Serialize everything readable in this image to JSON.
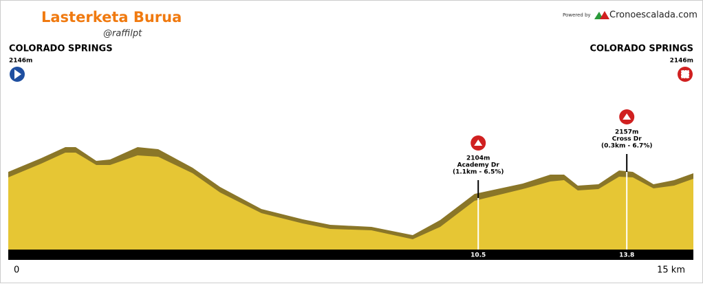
{
  "header": {
    "title": "Lasterketa Burua",
    "author": "@raffilpt",
    "powered_by": "Powered by",
    "brand": "Cronoescalada.com"
  },
  "start": {
    "name": "COLORADO SPRINGS",
    "elevation": "2146m"
  },
  "finish": {
    "name": "COLORADO SPRINGS",
    "elevation": "2146m"
  },
  "climbs": [
    {
      "elevation": "2104m",
      "name": "Academy Dr",
      "detail": "(1.1km - 6.5%)",
      "km": "10.5"
    },
    {
      "elevation": "2157m",
      "name": "Cross Dr",
      "detail": "(0.3km - 6.7%)",
      "km": "13.8"
    }
  ],
  "axis": {
    "start": "0",
    "end": "15 km"
  }
}
